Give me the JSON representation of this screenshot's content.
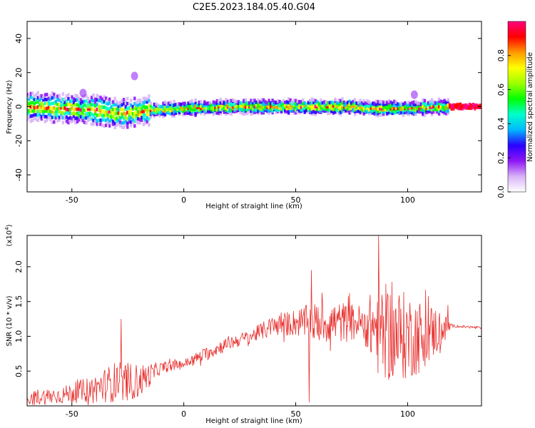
{
  "figure": {
    "title": "C2E5.2023.184.05.40.G04"
  },
  "chart_data": [
    {
      "type": "heatmap",
      "xlabel": "Height of straight line (km)",
      "ylabel": "Frequency (Hz)",
      "xlim": [
        -70,
        133
      ],
      "ylim": [
        -50,
        50
      ],
      "xticks": [
        -50,
        0,
        50,
        100
      ],
      "yticks": [
        -40,
        -20,
        0,
        20,
        40
      ],
      "colorbar": {
        "label": "Normalized spectral amplitude",
        "range": [
          0,
          1
        ],
        "ticks": [
          0.0,
          0.2,
          0.4,
          0.6,
          0.8
        ],
        "colormap": [
          "#ffffff",
          "#d8b2f7",
          "#8e16f5",
          "#2a00ff",
          "#00b8ff",
          "#00ffcc",
          "#00ff00",
          "#9dff00",
          "#ffff00",
          "#ff9a00",
          "#ff0000",
          "#ff007f"
        ]
      },
      "center_frequency_track": [
        {
          "x": -70,
          "y": 0
        },
        {
          "x": -55,
          "y": -1
        },
        {
          "x": -40,
          "y": -2
        },
        {
          "x": -30,
          "y": -4
        },
        {
          "x": -25,
          "y": -4
        },
        {
          "x": -15,
          "y": -2
        },
        {
          "x": 0,
          "y": -1
        },
        {
          "x": 25,
          "y": 0
        },
        {
          "x": 50,
          "y": 0
        },
        {
          "x": 75,
          "y": 0
        },
        {
          "x": 85,
          "y": -1
        },
        {
          "x": 100,
          "y": -1
        },
        {
          "x": 115,
          "y": 0
        },
        {
          "x": 133,
          "y": 0
        }
      ],
      "blobs": [
        {
          "x": -22,
          "y": 18
        },
        {
          "x": -45,
          "y": 8
        },
        {
          "x": 103,
          "y": 7
        }
      ]
    },
    {
      "type": "line",
      "xlabel": "Height of straight line (km)",
      "ylabel": "SNR (10 * v/v)",
      "y_multiplier": "(x10",
      "y_multiplier_exp": "4",
      "y_multiplier_close": ")",
      "xlim": [
        -70,
        133
      ],
      "ylim": [
        0,
        2.45
      ],
      "xticks": [
        -50,
        0,
        50,
        100
      ],
      "yticks": [
        0.5,
        1.0,
        1.5,
        2.0
      ],
      "ytick_labels": [
        "0.5",
        "1.0",
        "1.5",
        "2.0"
      ],
      "series": [
        {
          "color": "#e8302e",
          "envelope": [
            {
              "x": -70,
              "mean": 0.12,
              "amp": 0.12
            },
            {
              "x": -55,
              "mean": 0.15,
              "amp": 0.12
            },
            {
              "x": -40,
              "mean": 0.25,
              "amp": 0.2
            },
            {
              "x": -30,
              "mean": 0.35,
              "amp": 0.3
            },
            {
              "x": -20,
              "mean": 0.35,
              "amp": 0.25
            },
            {
              "x": -10,
              "mean": 0.55,
              "amp": 0.08
            },
            {
              "x": 0,
              "mean": 0.6,
              "amp": 0.07
            },
            {
              "x": 10,
              "mean": 0.75,
              "amp": 0.1
            },
            {
              "x": 20,
              "mean": 0.9,
              "amp": 0.1
            },
            {
              "x": 30,
              "mean": 1.0,
              "amp": 0.1
            },
            {
              "x": 40,
              "mean": 1.15,
              "amp": 0.15
            },
            {
              "x": 50,
              "mean": 1.2,
              "amp": 0.2
            },
            {
              "x": 60,
              "mean": 1.2,
              "amp": 0.3
            },
            {
              "x": 70,
              "mean": 1.2,
              "amp": 0.3
            },
            {
              "x": 80,
              "mean": 1.2,
              "amp": 0.25
            },
            {
              "x": 87,
              "mean": 1.1,
              "amp": 0.7
            },
            {
              "x": 95,
              "mean": 1.0,
              "amp": 0.7
            },
            {
              "x": 105,
              "mean": 1.0,
              "amp": 0.55
            },
            {
              "x": 115,
              "mean": 1.1,
              "amp": 0.3
            },
            {
              "x": 120,
              "mean": 1.15,
              "amp": 0.02
            },
            {
              "x": 133,
              "mean": 1.12,
              "amp": 0.02
            }
          ],
          "spikes": [
            {
              "x": -28,
              "y": 1.25
            },
            {
              "x": 56,
              "y": 0.05
            },
            {
              "x": 57,
              "y": 1.95
            },
            {
              "x": 87,
              "y": 2.45
            },
            {
              "x": 118,
              "y": 1.45
            }
          ]
        }
      ]
    }
  ]
}
